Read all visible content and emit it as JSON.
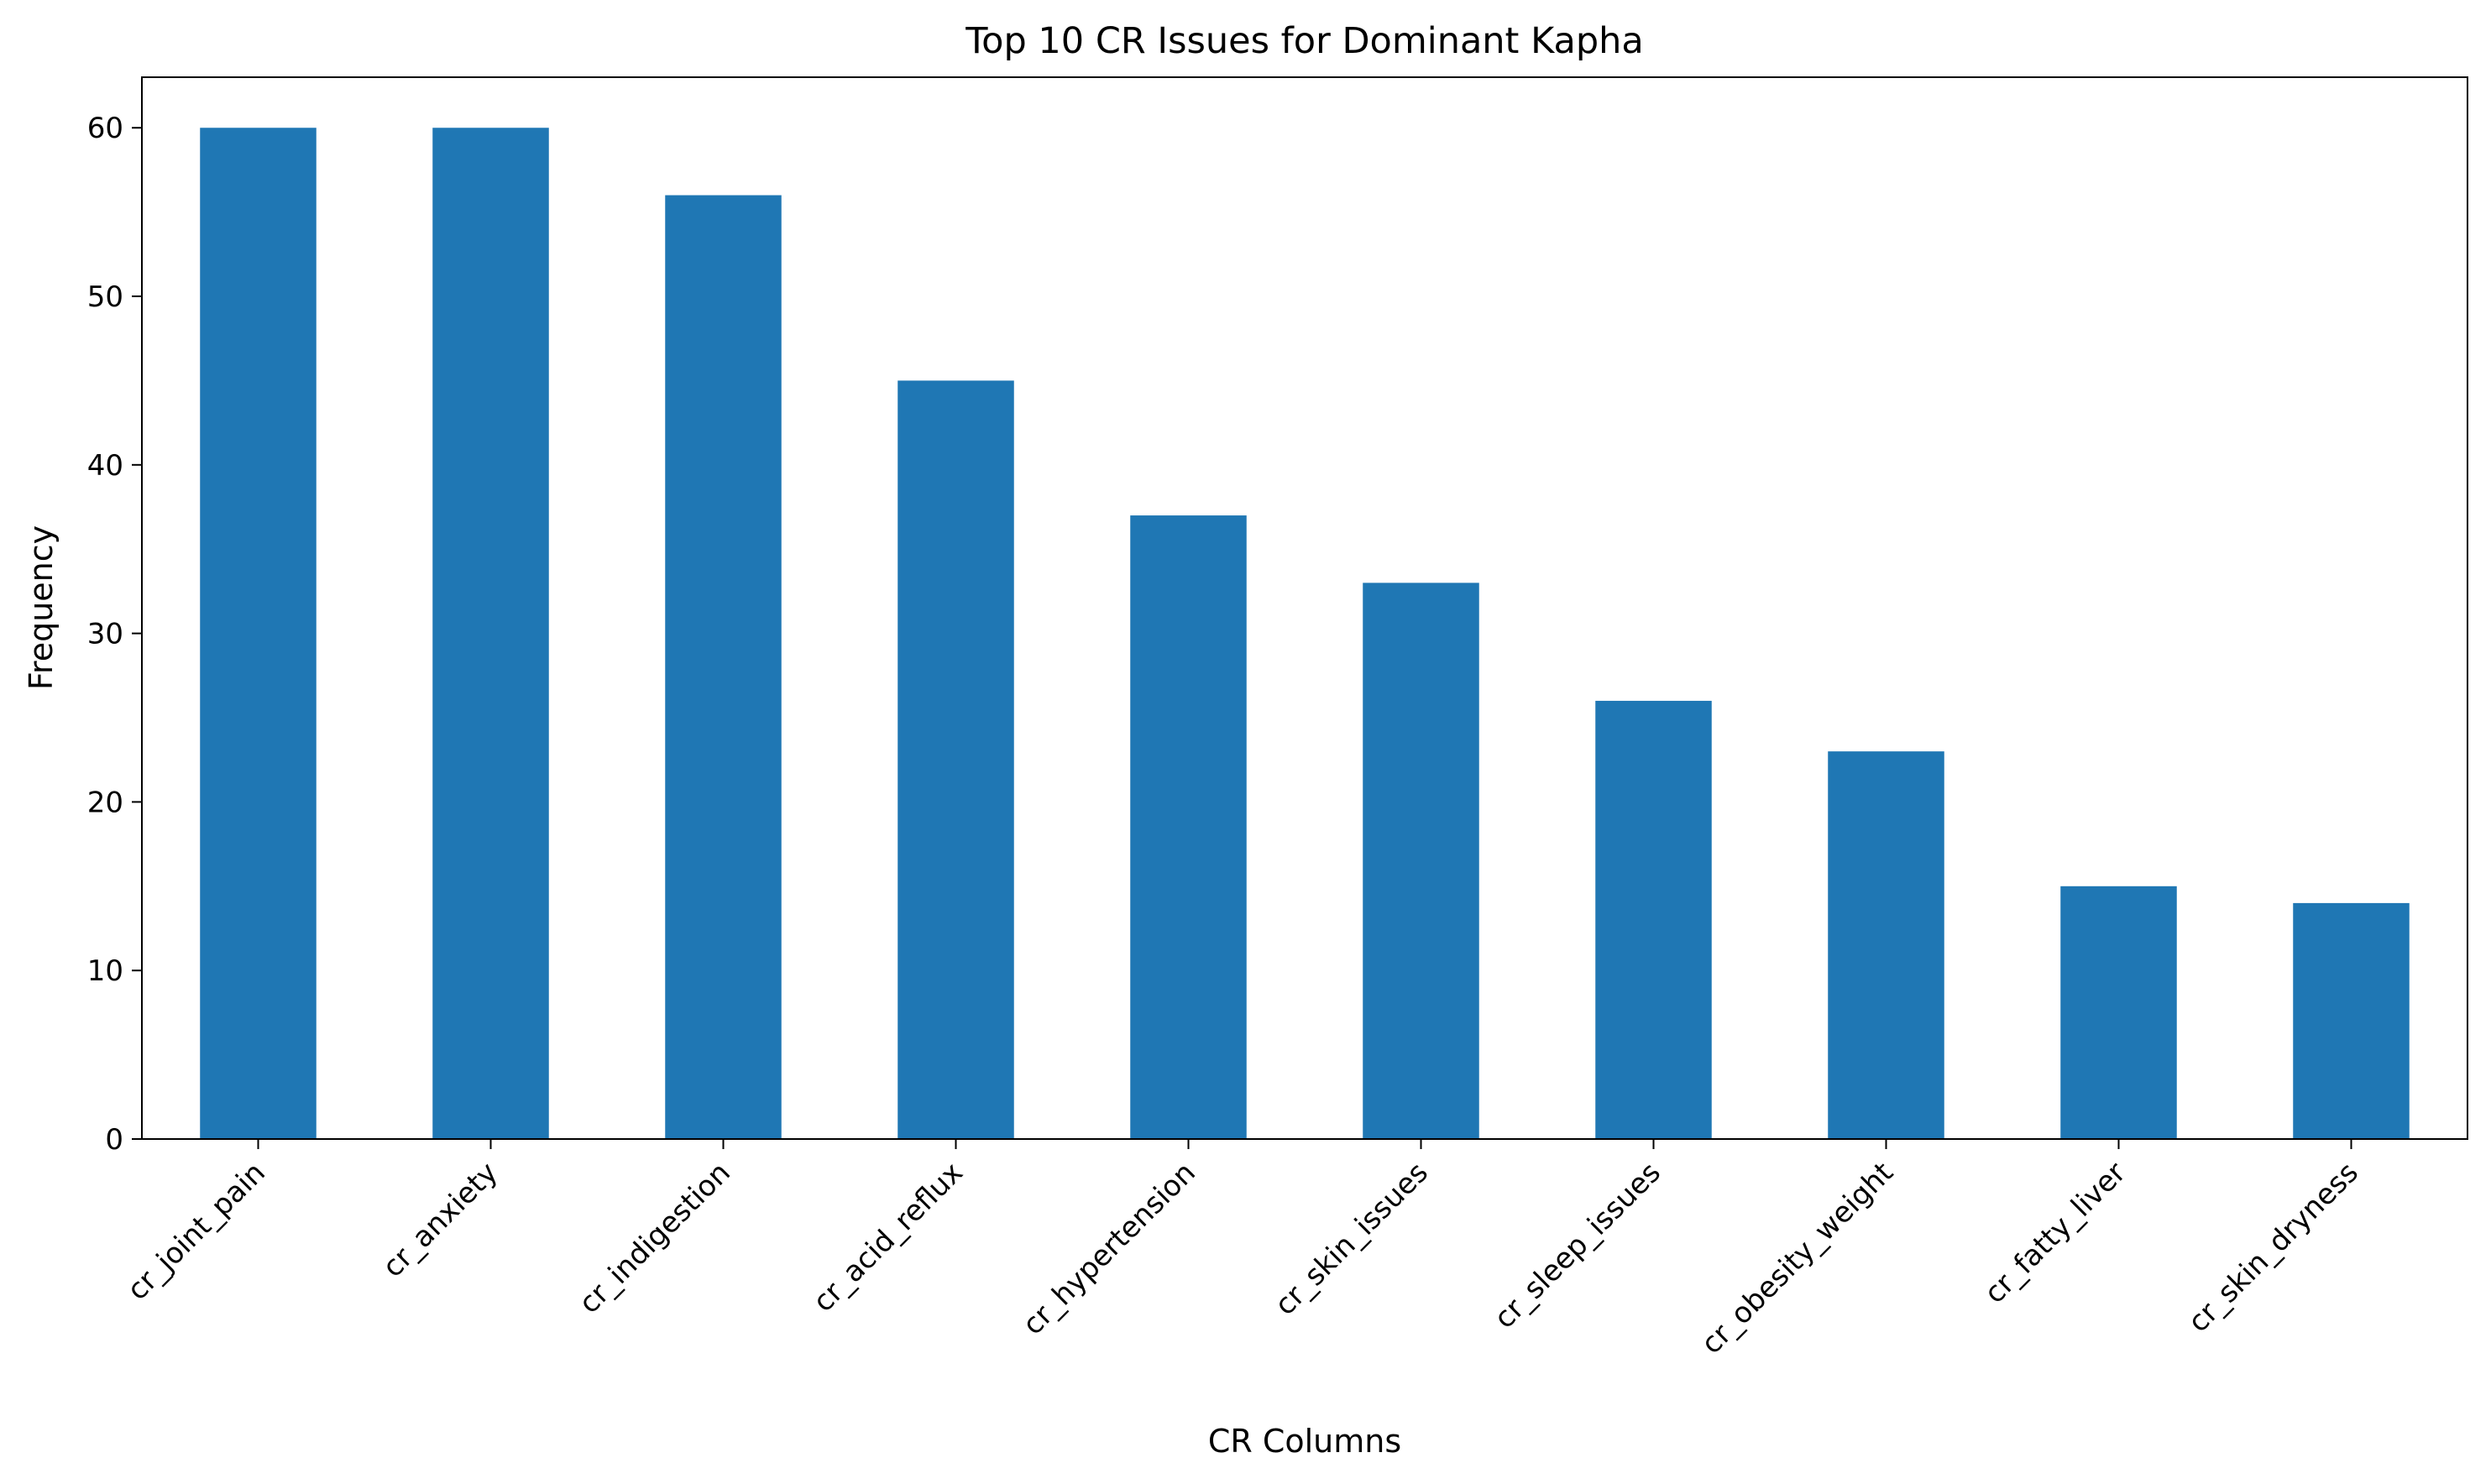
{
  "chart_data": {
    "type": "bar",
    "title": "Top 10 CR Issues for Dominant Kapha",
    "xlabel": "CR Columns",
    "ylabel": "Frequency",
    "categories": [
      "cr_joint_pain",
      "cr_anxiety",
      "cr_indigestion",
      "cr_acid_reflux",
      "cr_hypertension",
      "cr_skin_issues",
      "cr_sleep_issues",
      "cr_obesity_weight",
      "cr_fatty_liver",
      "cr_skin_dryness"
    ],
    "values": [
      60,
      60,
      56,
      45,
      37,
      33,
      26,
      23,
      15,
      14
    ],
    "ylim": [
      0,
      63
    ],
    "yticks": [
      0,
      10,
      20,
      30,
      40,
      50,
      60
    ],
    "grid": false,
    "legend": "none",
    "bar_color": "#1f77b4",
    "x_tick_rotation": 45
  }
}
